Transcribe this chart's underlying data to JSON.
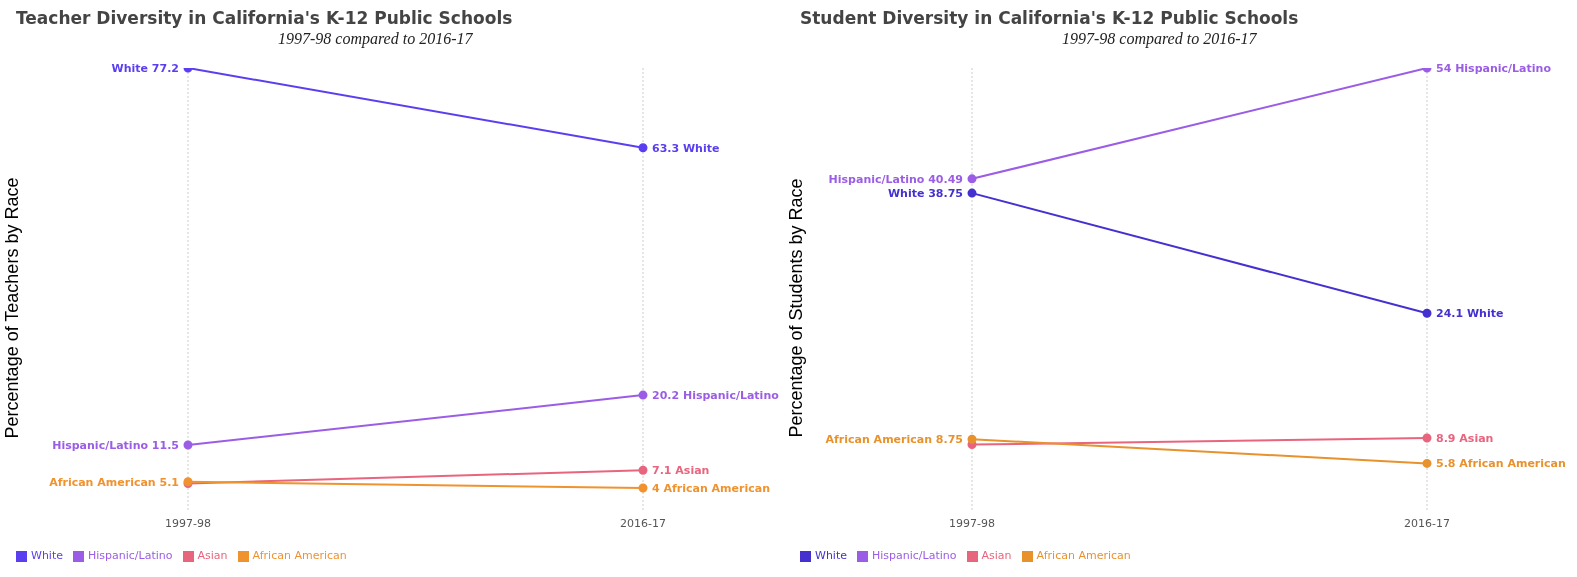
{
  "chart_data": [
    {
      "type": "line",
      "title": "Teacher Diversity in California's K-12 Public Schools",
      "subtitle": "1997-98 compared to 2016-17",
      "ylabel": "Percentage of Teachers by Race",
      "categories": [
        "1997-98",
        "2016-17"
      ],
      "grid": "x",
      "legend": "bottom left",
      "marker": "circle",
      "series": [
        {
          "name": "White",
          "color": "#5a3ff0",
          "values": [
            77.2,
            63.3
          ],
          "value_labels": [
            "White 77.2",
            "63.3 White"
          ]
        },
        {
          "name": "Hispanic/Latino",
          "color": "#9b5de5",
          "values": [
            11.5,
            20.2
          ],
          "value_labels": [
            "Hispanic/Latino 11.5",
            "20.2 Hispanic/Latino"
          ]
        },
        {
          "name": "Asian",
          "color": "#e8657e",
          "values": [
            4.8,
            7.1
          ],
          "value_labels": [
            null,
            "7.1 Asian"
          ]
        },
        {
          "name": "African American",
          "color": "#f0922e",
          "values": [
            5.1,
            4
          ],
          "value_labels": [
            "African American 5.1",
            "4 African American"
          ]
        }
      ]
    },
    {
      "type": "line",
      "title": "Student Diversity in California's K-12 Public Schools",
      "subtitle": "1997-98 compared to 2016-17",
      "ylabel": "Percentage of Students by Race",
      "categories": [
        "1997-98",
        "2016-17"
      ],
      "grid": "x",
      "legend": "bottom left",
      "marker": "circle",
      "series": [
        {
          "name": "White",
          "color": "#4431d0",
          "values": [
            38.75,
            24.1
          ],
          "value_labels": [
            "White 38.75",
            "24.1 White"
          ]
        },
        {
          "name": "Hispanic/Latino",
          "color": "#9b5de5",
          "values": [
            40.49,
            54
          ],
          "value_labels": [
            "Hispanic/Latino 40.49",
            "54 Hispanic/Latino"
          ]
        },
        {
          "name": "Asian",
          "color": "#e8657e",
          "values": [
            8.1,
            8.9
          ],
          "value_labels": [
            null,
            "8.9 Asian"
          ]
        },
        {
          "name": "African American",
          "color": "#e8922e",
          "values": [
            8.75,
            5.8
          ],
          "value_labels": [
            "African American 8.75",
            "5.8 African American"
          ]
        }
      ]
    }
  ]
}
